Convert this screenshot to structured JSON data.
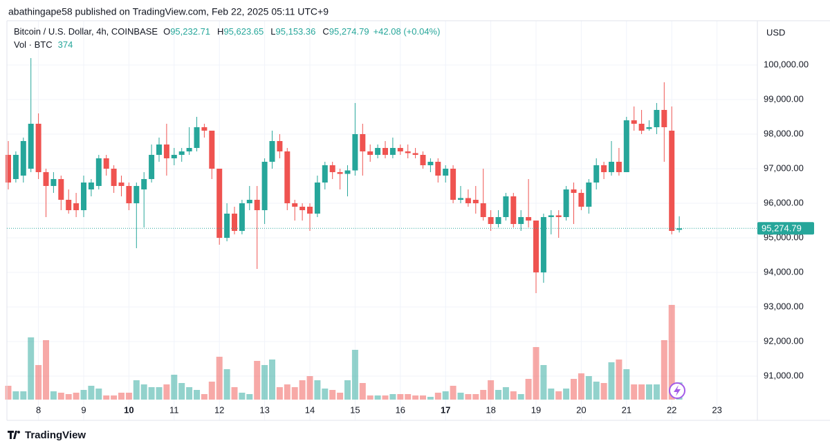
{
  "header": "abathingape58 published on TradingView.com, Feb 22, 2025 05:11 UTC+9",
  "footer": "TradingView",
  "chart_data": {
    "type": "candlestick",
    "currency": "USD",
    "legend": {
      "name": "Bitcoin / U.S. Dollar, 4h, COINBASE",
      "items": [
        {
          "key": "O",
          "value": 95232.71,
          "label": "95,232.71"
        },
        {
          "key": "H",
          "value": 95623.65,
          "label": "95,623.65"
        },
        {
          "key": "L",
          "value": 95153.36,
          "label": "95,153.36"
        },
        {
          "key": "C",
          "value": 95274.79,
          "label": "95,274.79"
        }
      ],
      "change": {
        "value": 42.08,
        "label": "+42.08 (+0.04%)"
      },
      "volume_name": "Vol · BTC",
      "volume": 374
    },
    "up_color": "#26a69a",
    "down_color": "#ef5350",
    "grid": true,
    "open": [
      97400,
      96700,
      96800,
      97000,
      98300,
      96900,
      96500,
      96700,
      96100,
      96000,
      95800,
      96400,
      96500,
      97300,
      97000,
      96600,
      96500,
      96000,
      96400,
      96700,
      97400,
      97700,
      97300,
      97400,
      97500,
      97600,
      98200,
      98100,
      97000,
      95000,
      95700,
      95200,
      96000,
      96100,
      95800,
      97200,
      97800,
      97500,
      96000,
      95900,
      95900,
      95700,
      96600,
      97100,
      96900,
      96850,
      96950,
      98000,
      97500,
      97400,
      97600,
      97400,
      97600,
      97500,
      97450,
      97400,
      97100,
      97200,
      96800,
      97000,
      96100,
      96150,
      96100,
      96000,
      95600,
      95400,
      95600,
      96200,
      95400,
      95600,
      95500,
      94000,
      95600,
      95650,
      95600,
      96400,
      96300,
      95900,
      96600,
      97100,
      96900,
      97200,
      96900,
      98400,
      98300,
      98150,
      98200,
      98700,
      98100,
      95232.71
    ],
    "high": [
      97800,
      97500,
      97900,
      100200,
      98600,
      97000,
      96900,
      96800,
      96400,
      96300,
      96800,
      96700,
      97400,
      97400,
      97100,
      96800,
      96600,
      96600,
      96900,
      97700,
      97900,
      98300,
      97600,
      97600,
      98200,
      98500,
      98300,
      98100,
      97000,
      96000,
      95900,
      96100,
      96500,
      96500,
      97300,
      98100,
      98000,
      97600,
      96100,
      96000,
      96000,
      96800,
      97200,
      97200,
      97000,
      97100,
      98900,
      98300,
      97700,
      97700,
      97800,
      97900,
      97700,
      97700,
      97600,
      97500,
      97300,
      97300,
      97100,
      97100,
      96500,
      96400,
      96500,
      97000,
      95800,
      95800,
      96300,
      96300,
      95800,
      96700,
      95500,
      95700,
      95800,
      95800,
      96500,
      96600,
      96400,
      96700,
      97300,
      97200,
      97800,
      97600,
      98500,
      98800,
      98700,
      98400,
      98900,
      99500,
      98800,
      95623.65
    ],
    "low": [
      96400,
      96600,
      96600,
      96900,
      96700,
      95600,
      96300,
      95800,
      95700,
      95600,
      95600,
      96200,
      96400,
      96800,
      96300,
      96200,
      95800,
      94700,
      95300,
      96600,
      97200,
      96800,
      97100,
      97200,
      97400,
      97500,
      97900,
      96700,
      94800,
      94900,
      95100,
      95100,
      95800,
      94100,
      95400,
      97000,
      97300,
      95800,
      95500,
      95500,
      95200,
      95600,
      96400,
      96700,
      96400,
      96200,
      96800,
      96800,
      97200,
      97300,
      97300,
      97300,
      97400,
      97300,
      97300,
      97000,
      96900,
      96600,
      96600,
      96000,
      96000,
      95900,
      95700,
      95500,
      95200,
      95300,
      95500,
      95300,
      95200,
      95300,
      93400,
      93700,
      95100,
      95000,
      95500,
      95400,
      95800,
      95700,
      96400,
      96700,
      96800,
      96800,
      96900,
      98100,
      98000,
      98100,
      98000,
      97200,
      95100,
      95153.36
    ],
    "close": [
      96600,
      97400,
      97800,
      98300,
      96900,
      96500,
      96700,
      96100,
      95800,
      95800,
      96600,
      96600,
      97300,
      97000,
      96500,
      96500,
      96000,
      96500,
      96700,
      97400,
      97700,
      97300,
      97400,
      97500,
      97600,
      98200,
      98100,
      97000,
      95000,
      95700,
      95200,
      96000,
      96100,
      95800,
      97200,
      97800,
      97500,
      96000,
      95900,
      95800,
      95700,
      96600,
      97100,
      96900,
      96850,
      96950,
      98000,
      97500,
      97400,
      97600,
      97400,
      97600,
      97500,
      97450,
      97400,
      97100,
      97200,
      96800,
      97000,
      96100,
      96150,
      96000,
      96000,
      95600,
      95400,
      95600,
      96200,
      95400,
      95600,
      95500,
      94000,
      95600,
      95650,
      95600,
      96400,
      96300,
      95900,
      96600,
      97100,
      96900,
      97200,
      96900,
      98400,
      98300,
      98100,
      98200,
      98700,
      98200,
      95200,
      95274.79
    ],
    "volume": [
      300,
      180,
      180,
      1350,
      750,
      1290,
      180,
      150,
      120,
      150,
      210,
      300,
      240,
      90,
      90,
      150,
      150,
      420,
      330,
      270,
      270,
      330,
      540,
      360,
      270,
      210,
      120,
      390,
      930,
      660,
      270,
      150,
      120,
      840,
      750,
      870,
      270,
      330,
      270,
      420,
      510,
      420,
      240,
      210,
      150,
      420,
      1080,
      360,
      90,
      90,
      90,
      120,
      120,
      120,
      90,
      90,
      60,
      150,
      180,
      300,
      150,
      120,
      120,
      210,
      420,
      210,
      270,
      180,
      120,
      450,
      1140,
      750,
      240,
      180,
      240,
      450,
      570,
      510,
      390,
      360,
      810,
      870,
      660,
      330,
      330,
      330,
      330,
      1290,
      2055,
      374
    ],
    "last_price": {
      "value": 95274.79,
      "label": "95,274.79"
    },
    "ylim": [
      89720,
      101280
    ],
    "yticks": [
      {
        "value": 91000,
        "label": "91,000.00"
      },
      {
        "value": 92000,
        "label": "92,000.00"
      },
      {
        "value": 93000,
        "label": "93,000.00"
      },
      {
        "value": 94000,
        "label": "94,000.00"
      },
      {
        "value": 95000,
        "label": "95,000.00"
      },
      {
        "value": 96000,
        "label": "96,000.00"
      },
      {
        "value": 97000,
        "label": "97,000.00"
      },
      {
        "value": 98000,
        "label": "98,000.00"
      },
      {
        "value": 99000,
        "label": "99,000.00"
      },
      {
        "value": 100000,
        "label": "100,000.00"
      }
    ],
    "xticks": [
      {
        "value": 4,
        "label": "8"
      },
      {
        "value": 10,
        "label": "9"
      },
      {
        "value": 16,
        "label": "10",
        "bold": true
      },
      {
        "value": 22,
        "label": "11"
      },
      {
        "value": 28,
        "label": "12"
      },
      {
        "value": 34,
        "label": "13"
      },
      {
        "value": 40,
        "label": "14"
      },
      {
        "value": 46,
        "label": "15"
      },
      {
        "value": 52,
        "label": "16"
      },
      {
        "value": 58,
        "label": "17",
        "bold": true
      },
      {
        "value": 64,
        "label": "18"
      },
      {
        "value": 70,
        "label": "19"
      },
      {
        "value": 76,
        "label": "20"
      },
      {
        "value": 82,
        "label": "21"
      },
      {
        "value": 88,
        "label": "22"
      },
      {
        "value": 94,
        "label": "23"
      }
    ]
  }
}
